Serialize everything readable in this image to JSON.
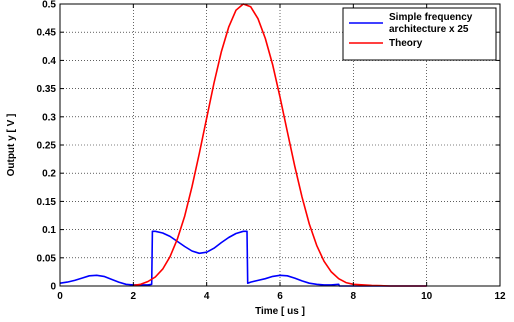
{
  "chart_data": {
    "type": "line",
    "title": "",
    "xlabel": "Time [ us ]",
    "ylabel": "Output y [ V ]",
    "xlim": [
      0,
      12
    ],
    "ylim": [
      0,
      0.5
    ],
    "xticks": [
      "0",
      "2",
      "4",
      "6",
      "8",
      "10",
      "12"
    ],
    "yticks": [
      "0",
      "0.05",
      "0.1",
      "0.15",
      "0.2",
      "0.25",
      "0.3",
      "0.35",
      "0.4",
      "0.45",
      "0.5"
    ],
    "grid": true,
    "legend_position": "top-right",
    "series": [
      {
        "name": "Simple frequency architecture x 25",
        "name_lines": [
          "Simple frequency",
          "architecture x 25"
        ],
        "color": "#0000ff",
        "x": [
          0,
          0.2,
          0.4,
          0.6,
          0.8,
          1.0,
          1.2,
          1.4,
          1.6,
          1.8,
          2.0,
          2.2,
          2.4,
          2.5,
          2.52,
          2.6,
          2.8,
          3.0,
          3.2,
          3.4,
          3.6,
          3.8,
          4.0,
          4.2,
          4.4,
          4.6,
          4.8,
          5.0,
          5.1,
          5.12,
          5.2,
          5.4,
          5.6,
          5.8,
          6.0,
          6.2,
          6.4,
          6.6,
          6.8,
          7.0,
          7.2,
          7.4,
          7.6,
          7.62,
          7.8,
          8.0,
          9.0,
          10.0
        ],
        "y": [
          0.005,
          0.007,
          0.01,
          0.014,
          0.018,
          0.019,
          0.017,
          0.012,
          0.007,
          0.003,
          0.002,
          0.002,
          0.002,
          0.003,
          0.097,
          0.097,
          0.094,
          0.088,
          0.079,
          0.07,
          0.062,
          0.058,
          0.06,
          0.067,
          0.077,
          0.086,
          0.093,
          0.097,
          0.097,
          0.005,
          0.007,
          0.01,
          0.013,
          0.017,
          0.019,
          0.018,
          0.014,
          0.009,
          0.005,
          0.003,
          0.002,
          0.002,
          0.003,
          0.0,
          0.0,
          0.0,
          0.0,
          0.0
        ]
      },
      {
        "name": "Theory",
        "name_lines": [
          "Theory"
        ],
        "color": "#ff0000",
        "x": [
          2.0,
          2.2,
          2.4,
          2.6,
          2.8,
          3.0,
          3.2,
          3.4,
          3.6,
          3.8,
          4.0,
          4.2,
          4.4,
          4.6,
          4.8,
          5.0,
          5.2,
          5.4,
          5.6,
          5.8,
          6.0,
          6.2,
          6.4,
          6.6,
          6.8,
          7.0,
          7.2,
          7.4,
          7.6,
          7.8,
          8.0,
          8.5,
          9.0,
          10.0
        ],
        "y": [
          0.001,
          0.003,
          0.008,
          0.016,
          0.03,
          0.052,
          0.083,
          0.124,
          0.176,
          0.235,
          0.298,
          0.36,
          0.415,
          0.459,
          0.489,
          0.5,
          0.495,
          0.474,
          0.439,
          0.392,
          0.335,
          0.274,
          0.213,
          0.158,
          0.11,
          0.072,
          0.044,
          0.025,
          0.013,
          0.006,
          0.003,
          0.001,
          0.0,
          0.0
        ]
      }
    ]
  }
}
